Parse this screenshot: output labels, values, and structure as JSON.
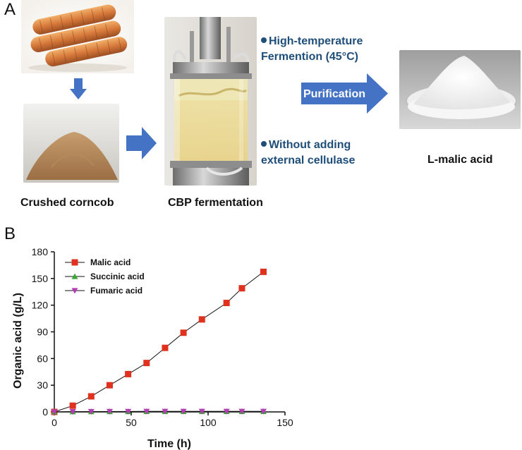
{
  "panelA": {
    "letter": "A",
    "captions": {
      "corncob": "Crushed corncob",
      "cbp": "CBP fermentation",
      "product": "L-malic acid"
    },
    "notes": {
      "high_temp_line1": "High-temperature",
      "high_temp_line2": "Fermention (45°C)",
      "no_cellulase_line1": "Without adding",
      "no_cellulase_line2": "external cellulase"
    },
    "purification_label": "Purification",
    "colors": {
      "arrow": "#4472c4",
      "note": "#1f4e79"
    }
  },
  "panelB": {
    "letter": "B"
  },
  "chart_data": {
    "type": "line",
    "xlabel": "Time (h)",
    "ylabel": "Organic acid (g/L)",
    "xlim": [
      0,
      150
    ],
    "ylim": [
      0,
      180
    ],
    "xticks": [
      0,
      50,
      100,
      150
    ],
    "yticks": [
      0,
      30,
      60,
      90,
      120,
      150,
      180
    ],
    "grid": false,
    "legend_position": "top-left",
    "series": [
      {
        "name": "Malic acid",
        "marker": "square",
        "color": "#e0301e",
        "x": [
          0,
          12,
          24,
          36,
          48,
          60,
          72,
          84,
          96,
          112,
          122,
          136
        ],
        "y": [
          0,
          7,
          17.5,
          30,
          42.5,
          55,
          72,
          89,
          104,
          122.5,
          139,
          157.5
        ]
      },
      {
        "name": "Succinic acid",
        "marker": "triangle-up",
        "color": "#3aa835",
        "x": [
          0,
          12,
          24,
          36,
          48,
          60,
          72,
          84,
          96,
          112,
          122,
          136
        ],
        "y": [
          0,
          0.2,
          0.3,
          0.4,
          0.4,
          0.5,
          0.5,
          0.5,
          0.5,
          0.5,
          0.5,
          0.5
        ]
      },
      {
        "name": "Fumaric acid",
        "marker": "triangle-down",
        "color": "#b43cb4",
        "x": [
          0,
          12,
          24,
          36,
          48,
          60,
          72,
          84,
          96,
          112,
          122,
          136
        ],
        "y": [
          0,
          0.3,
          0.4,
          0.5,
          0.5,
          0.6,
          0.6,
          0.6,
          0.6,
          0.6,
          0.6,
          0.6
        ]
      }
    ]
  }
}
